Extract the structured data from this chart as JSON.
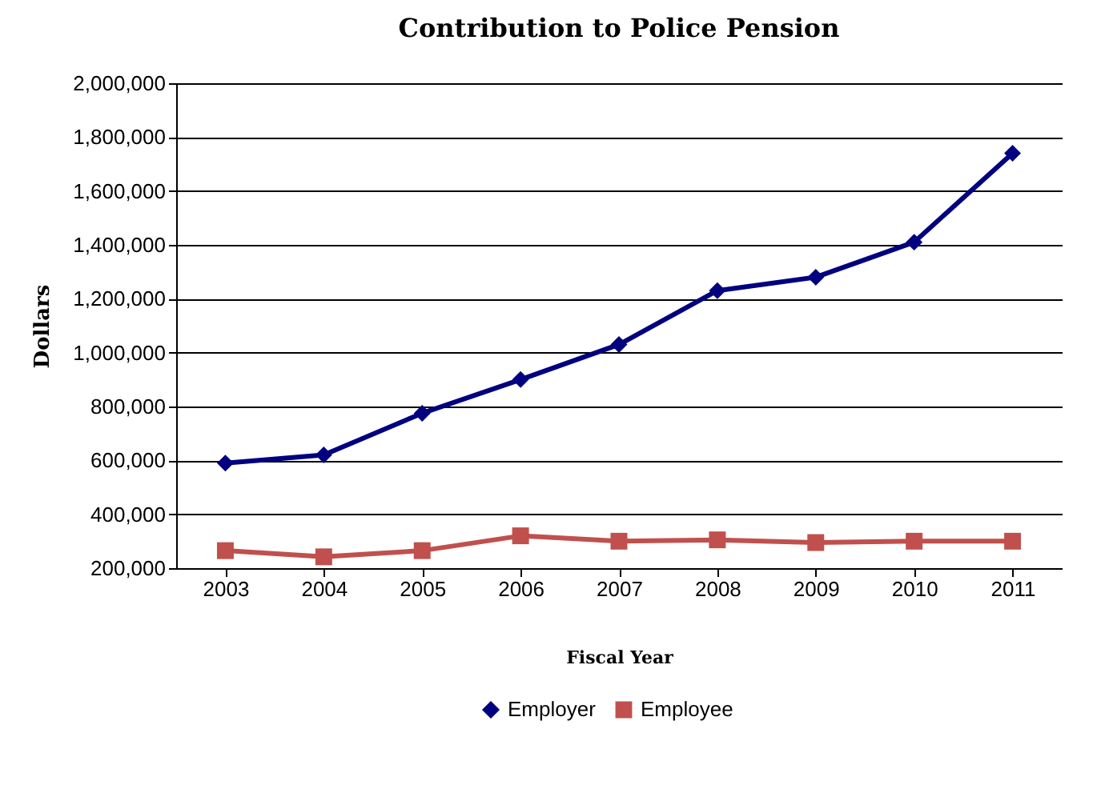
{
  "chart_data": {
    "type": "line",
    "title": "Contribution to Police Pension",
    "xlabel": "Fiscal Year",
    "ylabel": "Dollars",
    "categories": [
      "2003",
      "2004",
      "2005",
      "2006",
      "2007",
      "2008",
      "2009",
      "2010",
      "2011"
    ],
    "series": [
      {
        "name": "Employer",
        "color": "#000080",
        "marker": "diamond",
        "values": [
          590000,
          620000,
          775000,
          900000,
          1030000,
          1230000,
          1280000,
          1410000,
          1740000
        ]
      },
      {
        "name": "Employee",
        "color": "#c0504d",
        "marker": "square",
        "values": [
          265000,
          242000,
          265000,
          320000,
          300000,
          305000,
          295000,
          300000,
          300000
        ]
      }
    ],
    "ylim": [
      200000,
      2000000
    ],
    "yticks": [
      {
        "value": 200000,
        "label": "200,000"
      },
      {
        "value": 400000,
        "label": "400,000"
      },
      {
        "value": 600000,
        "label": "600,000"
      },
      {
        "value": 800000,
        "label": "800,000"
      },
      {
        "value": 1000000,
        "label": "1,000,000"
      },
      {
        "value": 1200000,
        "label": "1,200,000"
      },
      {
        "value": 1400000,
        "label": "1,400,000"
      },
      {
        "value": 1600000,
        "label": "1,600,000"
      },
      {
        "value": 1800000,
        "label": "1,800,000"
      },
      {
        "value": 2000000,
        "label": "2,000,000"
      }
    ],
    "grid": "y",
    "legend": "bottom",
    "line_style": "solid"
  }
}
